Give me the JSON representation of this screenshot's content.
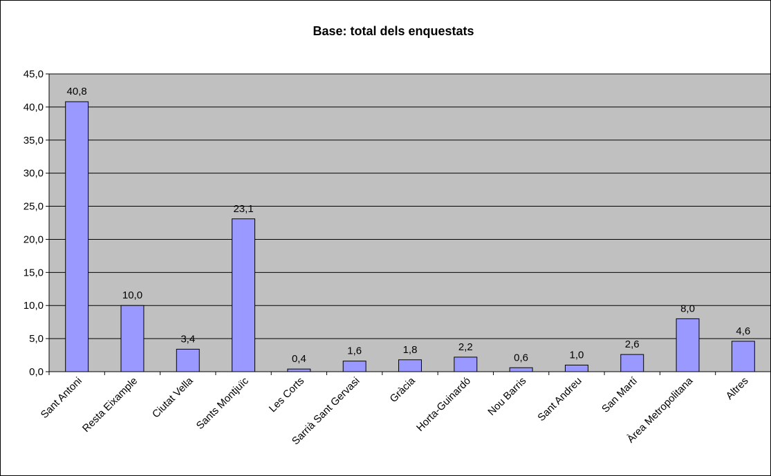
{
  "chart_data": {
    "type": "bar",
    "title": "Base: total dels enquestats",
    "xlabel": "",
    "ylabel": "",
    "ylim": [
      0,
      45
    ],
    "ytick_step": 5,
    "ytick_labels": [
      "0,0",
      "5,0",
      "10,0",
      "15,0",
      "20,0",
      "25,0",
      "30,0",
      "35,0",
      "40,0",
      "45,0"
    ],
    "grid": true,
    "legend": "none",
    "categories": [
      "Sant Antoni",
      "Resta Eixample",
      "Ciutat Vella",
      "Sants Montjuïc",
      "Les Corts",
      "Sarrià Sant Gervasi",
      "Gràcia",
      "Horta-Guinardó",
      "Nou Barris",
      "Sant Andreu",
      "San Martí",
      "Àrea Metropolitana",
      "Altres"
    ],
    "values": [
      40.8,
      10.0,
      3.4,
      23.1,
      0.4,
      1.6,
      1.8,
      2.2,
      0.6,
      1.0,
      2.6,
      8.0,
      4.6
    ],
    "value_labels": [
      "40,8",
      "10,0",
      "3,4",
      "23,1",
      "0,4",
      "1,6",
      "1,8",
      "2,2",
      "0,6",
      "1,0",
      "2,6",
      "8,0",
      "4,6"
    ],
    "colors": {
      "bar_fill": "#9999ff",
      "bar_stroke": "#000000",
      "plot_background": "#c0c0c0",
      "gridline": "#000000",
      "text": "#000000"
    }
  }
}
